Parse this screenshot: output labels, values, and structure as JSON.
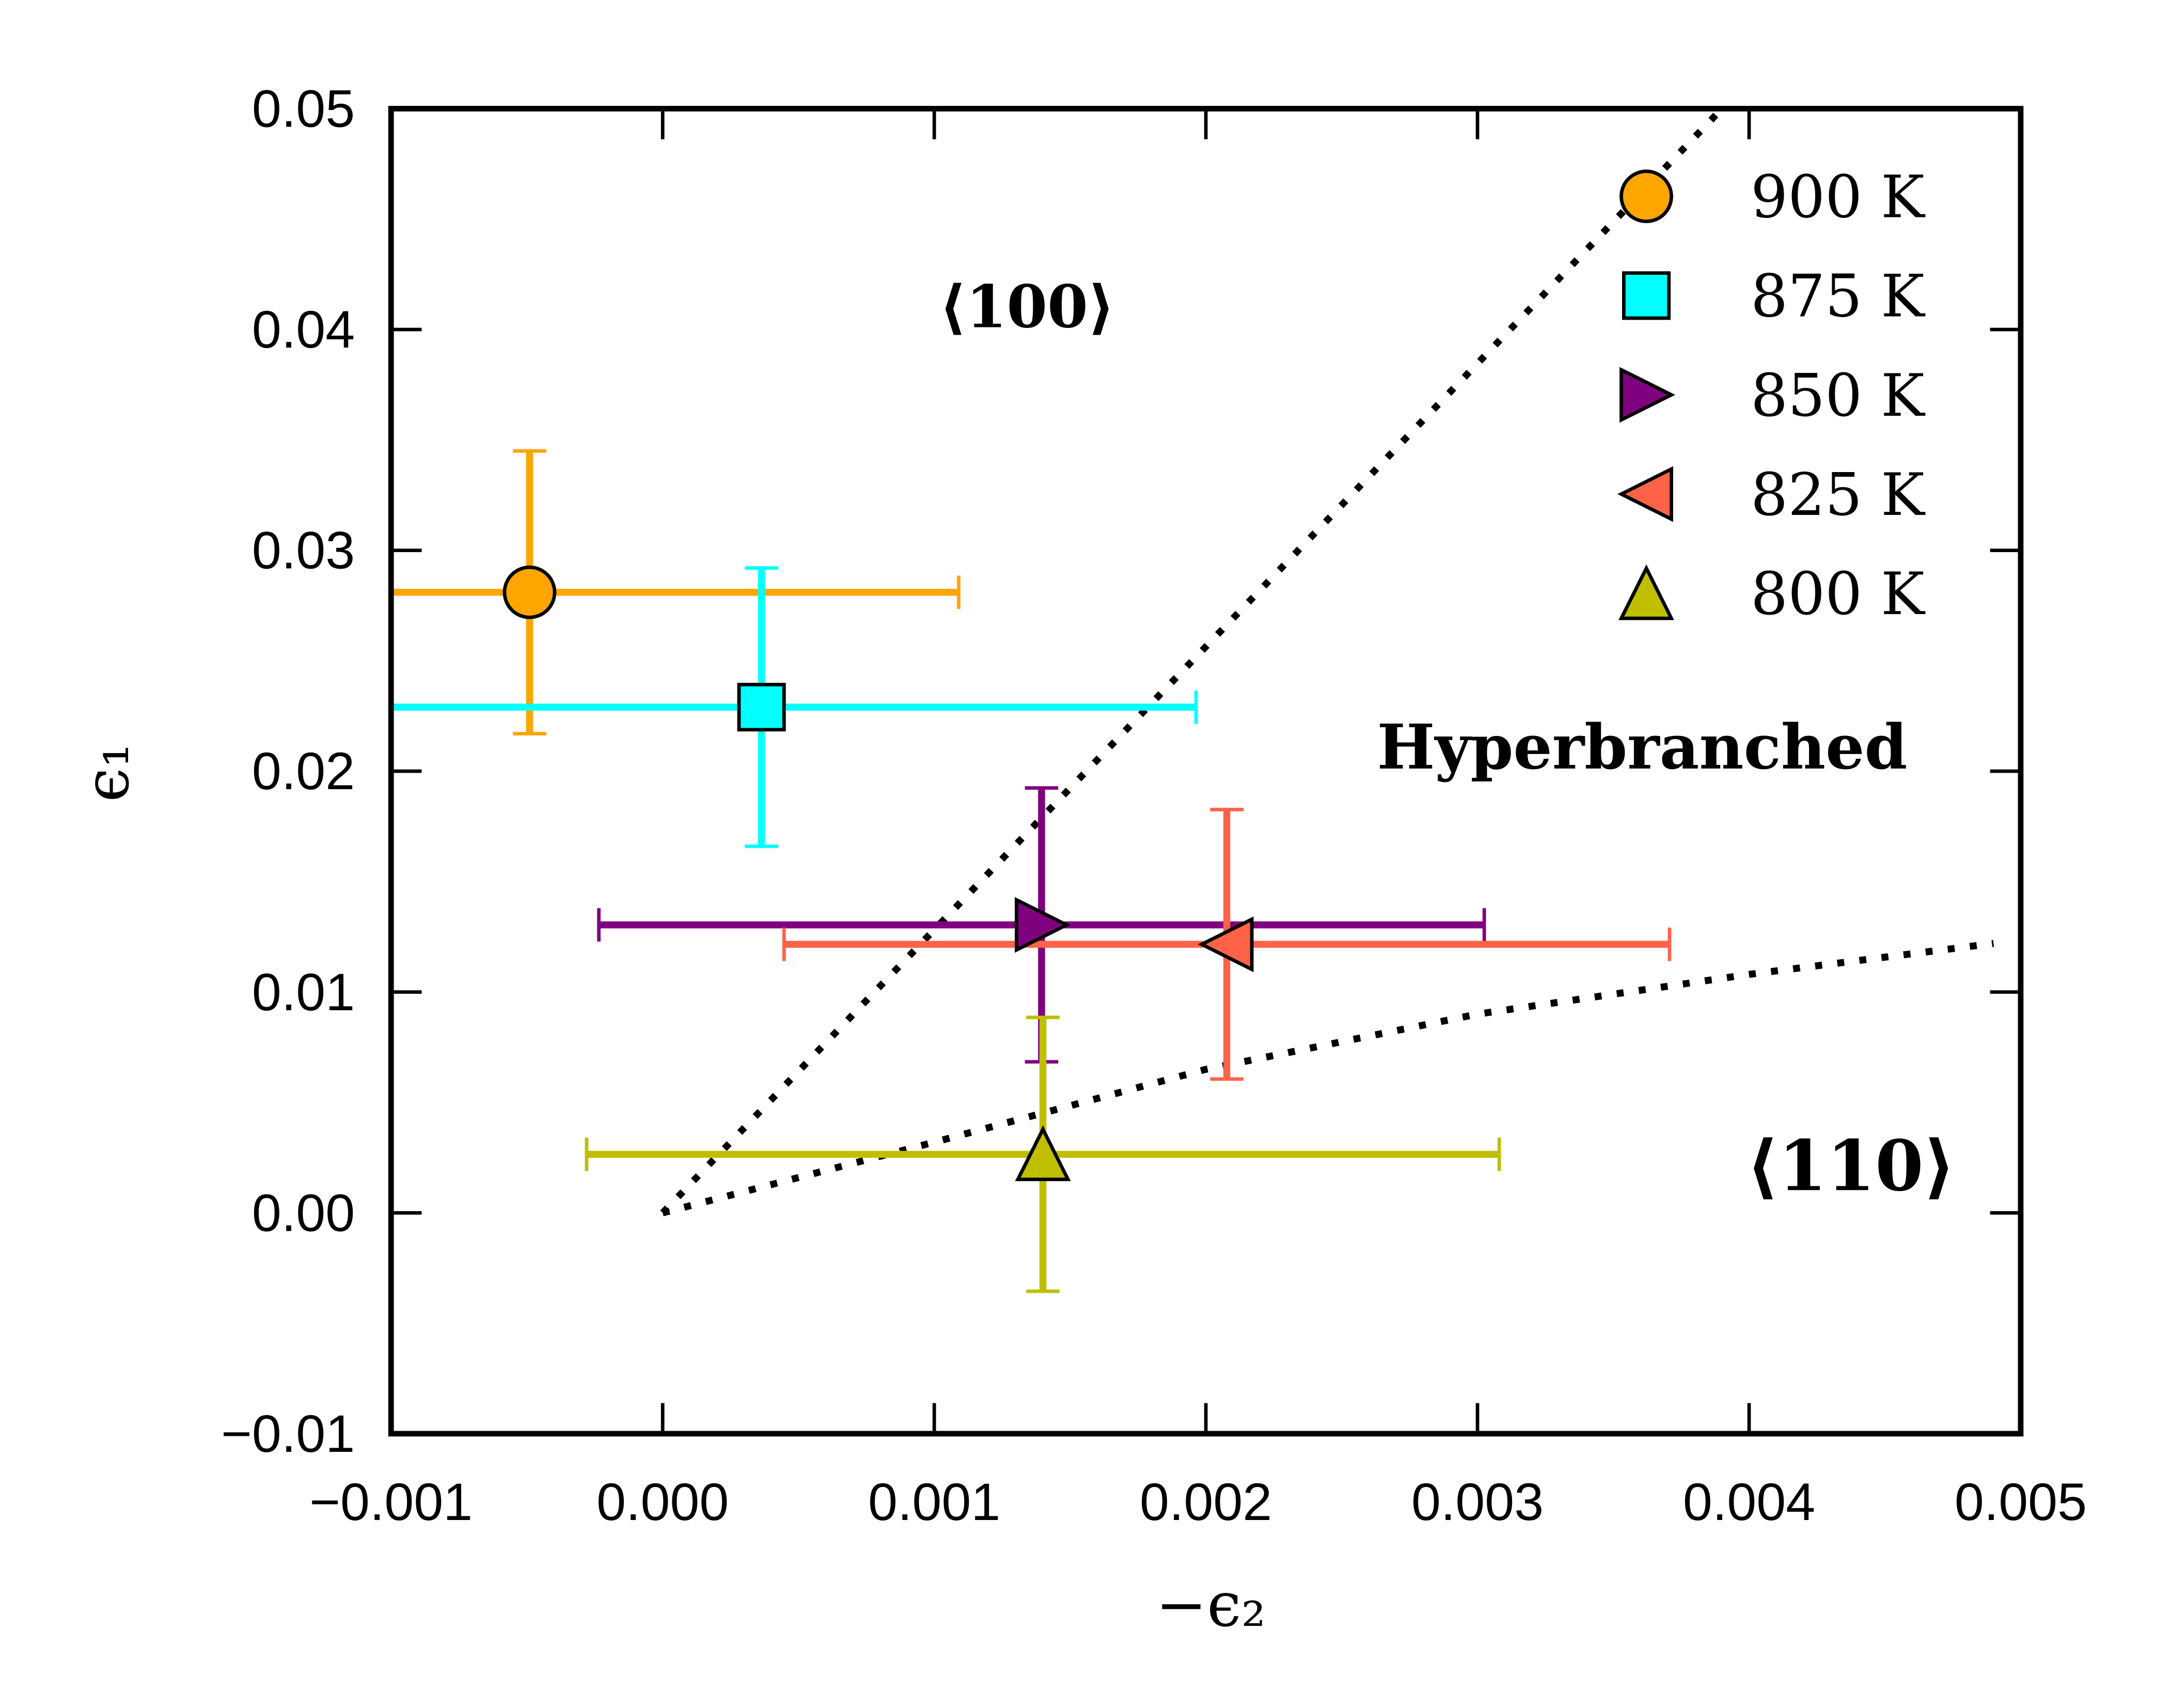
{
  "chart_data": {
    "type": "scatter",
    "xlabel": "−ϵ₂",
    "ylabel": "ϵ₁",
    "xlim": [
      -0.001,
      0.005
    ],
    "ylim": [
      -0.01,
      0.05
    ],
    "xticks": [
      {
        "value": -0.001,
        "label": "−0.001"
      },
      {
        "value": 0,
        "label": "0.000"
      },
      0.001,
      0.002,
      0.003,
      0.004,
      0.005
    ],
    "yticks": [
      {
        "value": -0.01,
        "label": "−0.01"
      },
      {
        "value": 0,
        "label": "0.00"
      },
      0.01,
      0.02,
      0.03,
      0.04,
      0.05
    ],
    "legend": "upper right",
    "series": [
      {
        "name": "900 K",
        "color": "#ffa500",
        "marker": "o",
        "x": [
          -0.00049
        ],
        "values": [
          0.0281
        ],
        "xerr": [
          0.00158
        ],
        "yerr": [
          0.0064
        ]
      },
      {
        "name": "875 K",
        "color": "#00ffff",
        "marker": "s",
        "x": [
          0.000364
        ],
        "values": [
          0.0229
        ],
        "xerr": [
          0.0016
        ],
        "yerr": [
          0.0063
        ]
      },
      {
        "name": "850 K",
        "color": "#800080",
        "marker": ">",
        "x": [
          0.001395
        ],
        "values": [
          0.01304
        ],
        "xerr": [
          0.00163
        ],
        "yerr": [
          0.0062
        ]
      },
      {
        "name": "825 K",
        "color": "#ff6347",
        "marker": "<",
        "x": [
          0.002077
        ],
        "values": [
          0.01216
        ],
        "xerr": [
          0.00163
        ],
        "yerr": [
          0.0061
        ]
      },
      {
        "name": "800 K",
        "color": "#bfbf00",
        "marker": "^",
        "x": [
          0.0014
        ],
        "values": [
          0.00265
        ],
        "xerr": [
          0.00168
        ],
        "yerr": [
          0.0062
        ]
      }
    ],
    "lines": [
      {
        "color": "#000000",
        "x": [
          0,
          0.0039
        ],
        "values": [
          0,
          0.05
        ]
      },
      {
        "color": "#000000",
        "x": [
          0,
          0.001,
          0.002,
          0.003,
          0.004,
          0.0049
        ],
        "values": [
          0,
          0.0032,
          0.0065,
          0.009,
          0.0108,
          0.0122
        ]
      }
    ],
    "annotations": [
      {
        "text": "⟨100⟩"
      },
      {
        "text": "Hyperbranched"
      },
      {
        "text": "⟨110⟩"
      }
    ]
  }
}
